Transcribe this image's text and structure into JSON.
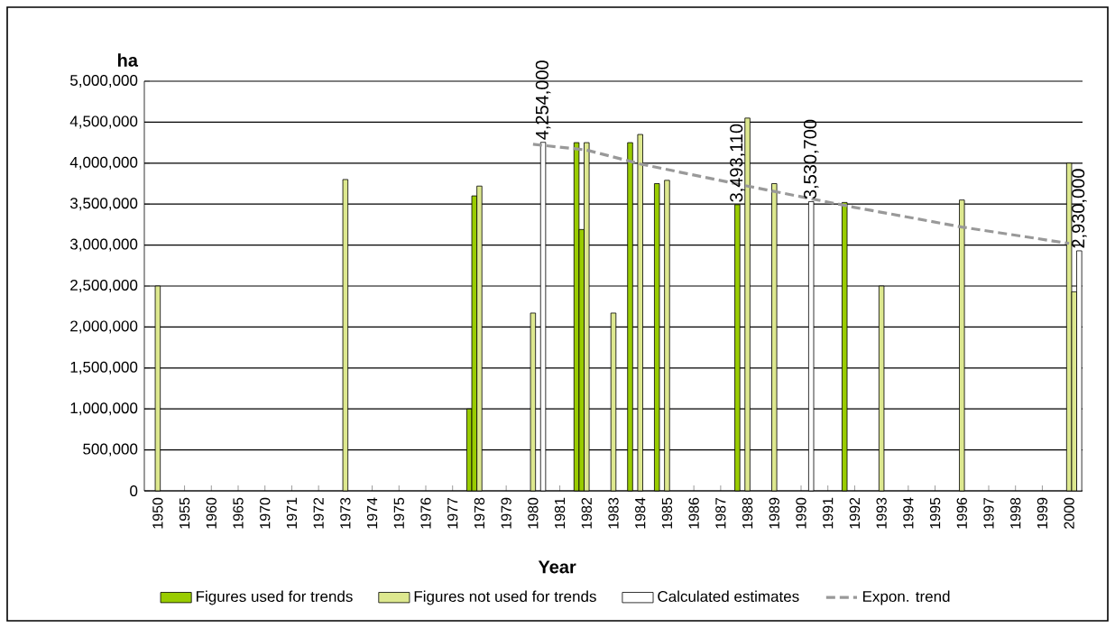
{
  "chart_data": {
    "type": "bar",
    "xlabel": "Year",
    "ylabel": "ha",
    "categories": [
      "1950",
      "1955",
      "1960",
      "1965",
      "1970",
      "1971",
      "1972",
      "1973",
      "1974",
      "1975",
      "1976",
      "1977",
      "1978",
      "1979",
      "1980",
      "1981",
      "1982",
      "1983",
      "1984",
      "1985",
      "1986",
      "1987",
      "1988",
      "1989",
      "1990",
      "1991",
      "1992",
      "1993",
      "1994",
      "1995",
      "1996",
      "1997",
      "1998",
      "1999",
      "2000"
    ],
    "ylim": [
      0,
      5000000
    ],
    "yticks": [
      {
        "value": 0,
        "label": "0"
      },
      {
        "value": 500000,
        "label": "500,000"
      },
      {
        "value": 1000000,
        "label": "1,000,000"
      },
      {
        "value": 1500000,
        "label": "1,500,000"
      },
      {
        "value": 2000000,
        "label": "2,000,000"
      },
      {
        "value": 2500000,
        "label": "2,500,000"
      },
      {
        "value": 3000000,
        "label": "3,000,000"
      },
      {
        "value": 3500000,
        "label": "3,500,000"
      },
      {
        "value": 4000000,
        "label": "4,000,000"
      },
      {
        "value": 4500000,
        "label": "4,500,000"
      },
      {
        "value": 5000000,
        "label": "5,000,000"
      }
    ],
    "grid": "y",
    "legend": "bottom",
    "series": [
      {
        "name": "Figures used for trends",
        "color": "#99cc00",
        "values": [
          null,
          null,
          null,
          null,
          null,
          null,
          null,
          null,
          null,
          null,
          null,
          null,
          1000000,
          null,
          null,
          null,
          4250000,
          null,
          4250000,
          3750000,
          null,
          null,
          3493110,
          null,
          null,
          null,
          3520000,
          null,
          null,
          null,
          null,
          null,
          null,
          null,
          null
        ],
        "value_labels": [
          null,
          null,
          null,
          null,
          null,
          null,
          null,
          null,
          null,
          null,
          null,
          null,
          null,
          null,
          null,
          null,
          null,
          null,
          null,
          null,
          null,
          null,
          "3,493,110",
          null,
          null,
          null,
          null,
          null,
          null,
          null,
          null,
          null,
          null,
          null,
          null
        ]
      },
      {
        "color": "#99cc00",
        "values": [
          null,
          null,
          null,
          null,
          null,
          null,
          null,
          null,
          null,
          null,
          null,
          null,
          3600000,
          null,
          null,
          null,
          3190000,
          null,
          null,
          null,
          null,
          null,
          null,
          null,
          null,
          null,
          null,
          null,
          null,
          null,
          null,
          null,
          null,
          null,
          null
        ]
      },
      {
        "name": "Figures not used for trends",
        "color": "#dde88f",
        "values": [
          2500000,
          null,
          null,
          null,
          null,
          null,
          null,
          3800000,
          null,
          null,
          null,
          null,
          3720000,
          null,
          2170000,
          null,
          4250000,
          2170000,
          4350000,
          3790000,
          null,
          null,
          4550000,
          3750000,
          null,
          null,
          null,
          2500000,
          null,
          null,
          3550000,
          null,
          null,
          null,
          4000000
        ]
      },
      {
        "color": "#dde88f",
        "values": [
          null,
          null,
          null,
          null,
          null,
          null,
          null,
          null,
          null,
          null,
          null,
          null,
          null,
          null,
          null,
          null,
          null,
          null,
          null,
          null,
          null,
          null,
          null,
          null,
          null,
          null,
          null,
          null,
          null,
          null,
          null,
          null,
          null,
          null,
          2430000
        ]
      },
      {
        "name": "Calculated estimates",
        "color": "#ffffff",
        "values": [
          null,
          null,
          null,
          null,
          null,
          null,
          null,
          null,
          null,
          null,
          null,
          null,
          null,
          null,
          4254000,
          null,
          null,
          null,
          null,
          null,
          null,
          null,
          null,
          null,
          3530700,
          null,
          null,
          null,
          null,
          null,
          null,
          null,
          null,
          null,
          2930000
        ],
        "value_labels": [
          null,
          null,
          null,
          null,
          null,
          null,
          null,
          null,
          null,
          null,
          null,
          null,
          null,
          null,
          "4,254,000",
          null,
          null,
          null,
          null,
          null,
          null,
          null,
          null,
          null,
          "3,530,700",
          null,
          null,
          null,
          null,
          null,
          null,
          null,
          null,
          null,
          "2,930,000"
        ]
      },
      {
        "name": "Expon. trend",
        "type": "line",
        "line_style": "dashed",
        "color": "#999999",
        "values": [
          null,
          null,
          null,
          null,
          null,
          null,
          null,
          null,
          null,
          null,
          null,
          null,
          null,
          null,
          4230000,
          null,
          4160000,
          null,
          3990000,
          null,
          null,
          null,
          3720000,
          null,
          null,
          null,
          3460000,
          null,
          null,
          null,
          3220000,
          null,
          null,
          null,
          3020000
        ]
      }
    ]
  }
}
